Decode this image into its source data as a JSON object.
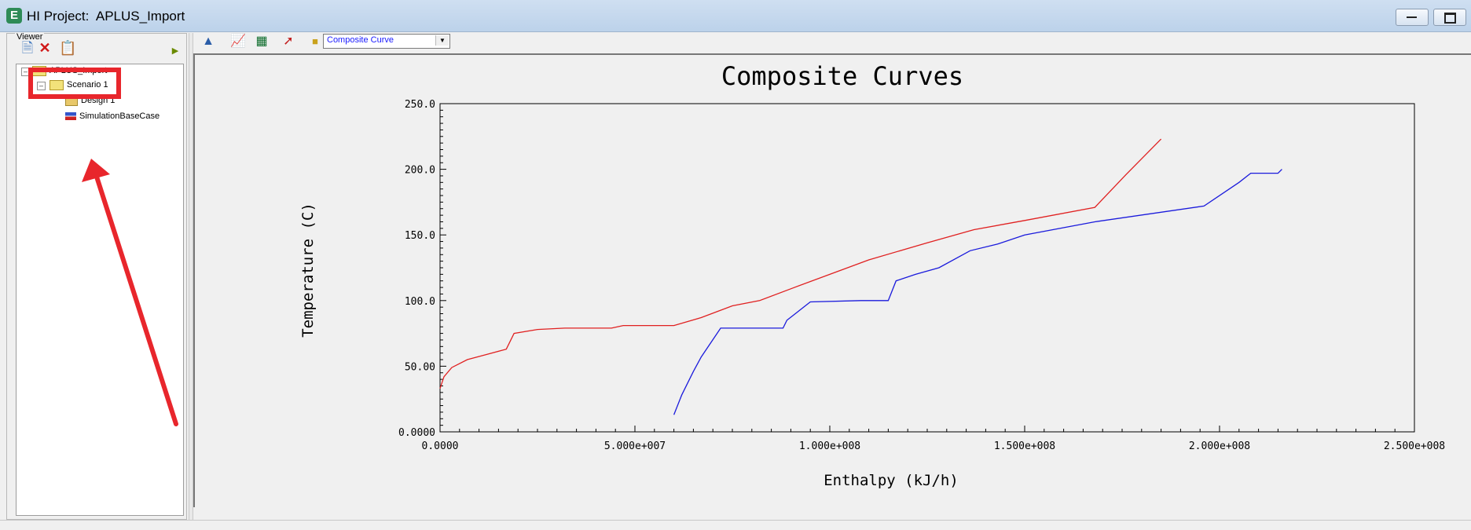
{
  "window": {
    "title": "HI Project:  APLUS_Import",
    "icon": "app-e-icon",
    "controls": [
      "minimize-icon",
      "maximize-icon"
    ]
  },
  "viewer": {
    "label": "Viewer",
    "toolbar_icons": [
      "new-document-icon",
      "delete-x-icon",
      "copy-icon",
      "play-arrow-icon"
    ],
    "tree": {
      "root": "APLUS_Import",
      "scenario": "Scenario 1",
      "children": [
        "Design 1",
        "SimulationBaseCase"
      ]
    }
  },
  "plot_toolbar": {
    "icons": [
      "run-icon",
      "edit-chart-icon",
      "table-icon",
      "curve-edit-icon",
      "folder-icon"
    ],
    "selector_value": "Composite Curve"
  },
  "annotation": {
    "highlight_color": "#e8262c"
  },
  "chart_data": {
    "type": "line",
    "title": "Composite Curves",
    "xlabel": "Enthalpy (kJ/h)",
    "ylabel": "Temperature (C)",
    "xlim": [
      0,
      250000000
    ],
    "ylim": [
      0,
      250
    ],
    "x_ticks": [
      0,
      50000000,
      100000000,
      150000000,
      200000000,
      250000000
    ],
    "x_tick_labels": [
      "0.0000",
      "5.000e+007",
      "1.000e+008",
      "1.500e+008",
      "2.000e+008",
      "2.500e+008"
    ],
    "y_ticks": [
      0,
      50,
      100,
      150,
      200,
      250
    ],
    "y_tick_labels": [
      "0.0000",
      "50.00",
      "100.0",
      "150.0",
      "200.0",
      "250.0"
    ],
    "grid": false,
    "legend": "none",
    "series": [
      {
        "color": "#e02020",
        "x": [
          0,
          1000000,
          3000000,
          7000000,
          12000000,
          17000000,
          19000000,
          25000000,
          32000000,
          44000000,
          47000000,
          60000000,
          67000000,
          75000000,
          82000000,
          90000000,
          100000000,
          110000000,
          125000000,
          137000000,
          150000000,
          168000000,
          176000000,
          185000000
        ],
        "y": [
          33,
          42,
          49,
          55,
          59,
          63,
          75,
          78,
          79,
          79,
          81,
          81,
          87,
          96,
          100,
          109,
          120,
          131,
          144,
          154,
          161,
          171,
          196,
          223
        ]
      },
      {
        "color": "#1a1adc",
        "x": [
          60000000,
          62000000,
          65000000,
          67000000,
          72000000,
          84000000,
          88000000,
          89000000,
          95000000,
          108000000,
          115000000,
          117000000,
          122000000,
          128000000,
          136000000,
          143000000,
          150000000,
          168000000,
          196000000,
          205000000,
          208000000,
          215000000,
          216000000
        ],
        "y": [
          13,
          28,
          46,
          57,
          79,
          79,
          79,
          85,
          99,
          100,
          100,
          115,
          120,
          125,
          138,
          143,
          150,
          160,
          172,
          190,
          197,
          197,
          200
        ]
      }
    ]
  }
}
